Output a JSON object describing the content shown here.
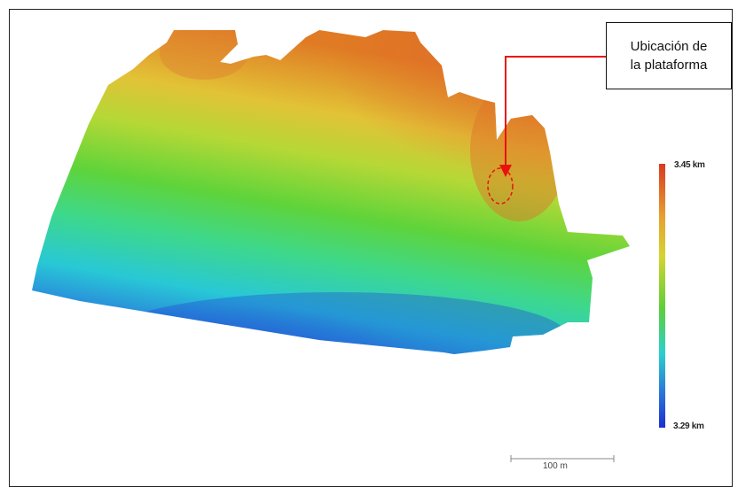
{
  "annotation": {
    "lines": [
      "Ubicación de",
      "la plataforma"
    ],
    "arrow_color": "#e8120c"
  },
  "legend": {
    "max_label": "3.45 km",
    "min_label": "3.29 km",
    "colors": [
      "#d83a20",
      "#e8a030",
      "#d4d430",
      "#5ccf3a",
      "#2ad0d0",
      "#2a6fd8",
      "#1c2fd0"
    ]
  },
  "scale_bar": {
    "label": "100 m"
  }
}
